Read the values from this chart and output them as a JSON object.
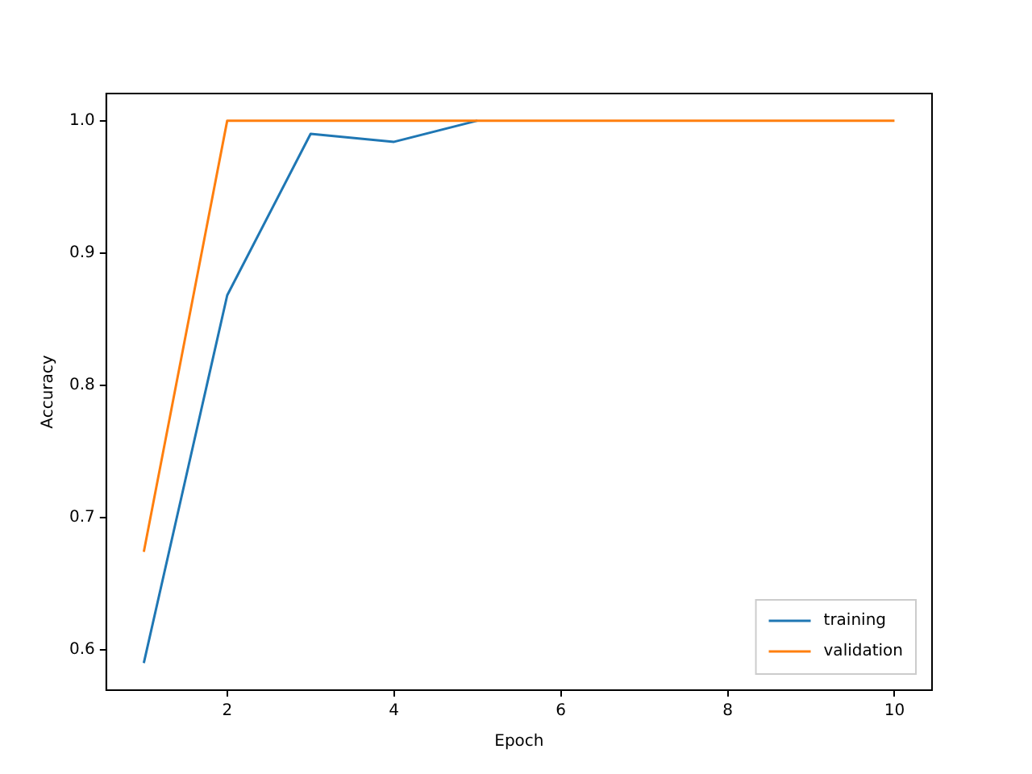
{
  "chart_data": {
    "type": "line",
    "xlabel": "Epoch",
    "ylabel": "Accuracy",
    "x": [
      1,
      2,
      3,
      4,
      5,
      6,
      7,
      8,
      9,
      10
    ],
    "series": [
      {
        "name": "training",
        "color": "#1f77b4",
        "values": [
          0.59,
          0.868,
          0.99,
          0.984,
          1.0,
          null,
          null,
          null,
          null,
          null
        ]
      },
      {
        "name": "validation",
        "color": "#ff7f0e",
        "values": [
          0.674,
          1.0,
          1.0,
          1.0,
          1.0,
          1.0,
          1.0,
          1.0,
          1.0,
          1.0
        ]
      }
    ],
    "xlim": [
      0.55,
      10.45
    ],
    "xticks": [
      2,
      4,
      6,
      8,
      10
    ],
    "ylim": [
      0.5695,
      1.0205
    ],
    "yticks": [
      0.6,
      0.7,
      0.8,
      0.9,
      {
        "value": 1,
        "label": "1.0"
      }
    ],
    "grid": false,
    "legend": "bottom right",
    "marker": "none",
    "line_style": "solid"
  }
}
